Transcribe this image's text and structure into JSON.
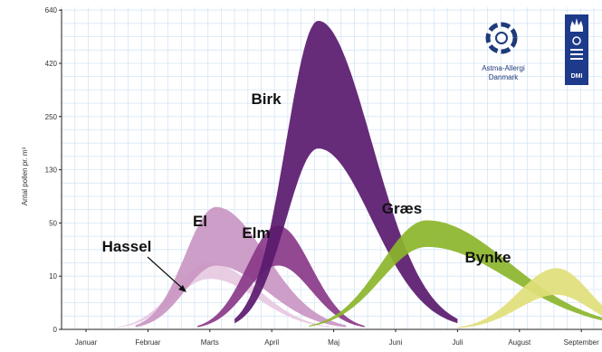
{
  "chart_data": {
    "type": "area",
    "title": "",
    "ylabel": "Antal pollen pr. m³",
    "xlabel": "",
    "y_ticks": [
      "640",
      "420",
      "250",
      "130",
      "50",
      "10",
      "0"
    ],
    "x_labels": [
      "Januar",
      "Februar",
      "Marts",
      "April",
      "Maj",
      "Juni",
      "Juli",
      "August",
      "September"
    ],
    "grid": true,
    "series": [
      {
        "name": "Hassel",
        "color": "#e7c9e1",
        "start_month": 0.5,
        "peak_month": 2.0,
        "end_month": 4.0,
        "peak_level": 1.25,
        "low_peak_level": 0.95
      },
      {
        "name": "El",
        "color": "#c996c2",
        "start_month": 0.8,
        "peak_month": 2.1,
        "end_month": 4.2,
        "peak_level": 2.3,
        "low_peak_level": 1.2
      },
      {
        "name": "Elm",
        "color": "#8a3a88",
        "start_month": 1.8,
        "peak_month": 3.1,
        "end_month": 4.5,
        "peak_level": 1.95,
        "low_peak_level": 1.2
      },
      {
        "name": "Birk",
        "color": "#5a1a6e",
        "start_month": 2.4,
        "peak_month": 3.75,
        "end_month": 6.0,
        "peak_level": 5.8,
        "low_peak_level": 3.4
      },
      {
        "name": "Græs",
        "color": "#8cb52b",
        "start_month": 3.6,
        "peak_month": 5.5,
        "end_month": 9.0,
        "peak_level": 2.05,
        "low_peak_level": 1.55
      },
      {
        "name": "Bynke",
        "color": "#dfe07a",
        "start_month": 6.0,
        "peak_month": 7.6,
        "end_month": 9.0,
        "peak_level": 1.15,
        "low_peak_level": 0.65
      }
    ]
  },
  "logos": {
    "astma": {
      "line1": "Astma-Allergi",
      "line2": "Danmark",
      "icon": "astma-allergi-logo-icon"
    },
    "dmi": {
      "text": "DMI",
      "icon": "crown-icon"
    }
  }
}
